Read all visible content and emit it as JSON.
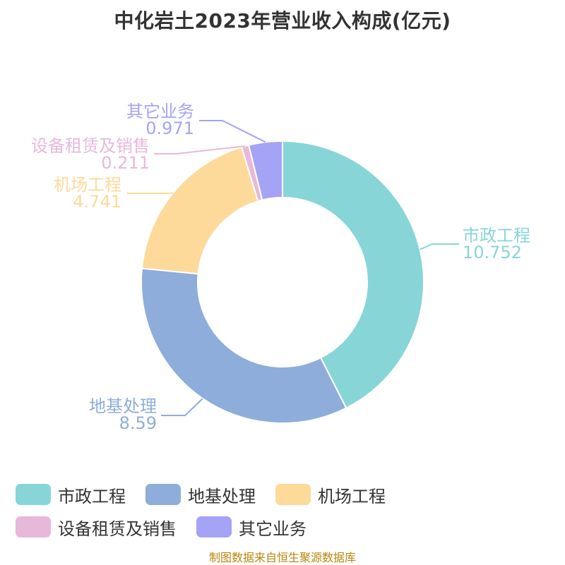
{
  "chart_data": {
    "type": "pie",
    "variant": "donut",
    "title": "中化岩土2023年营业收入构成(亿元)",
    "categories": [
      "市政工程",
      "地基处理",
      "机场工程",
      "设备租赁及销售",
      "其它业务"
    ],
    "values": [
      10.752,
      8.59,
      4.741,
      0.211,
      0.971
    ],
    "value_labels": [
      "10.752",
      "8.59",
      "4.741",
      "0.211",
      "0.971"
    ],
    "colors": [
      "#88d5d7",
      "#8eadda",
      "#fdd99a",
      "#e8b8da",
      "#a5a3f5"
    ],
    "legend_position": "bottom",
    "start_angle_deg": 90,
    "direction": "clockwise"
  },
  "source": "制图数据来自恒生聚源数据库"
}
